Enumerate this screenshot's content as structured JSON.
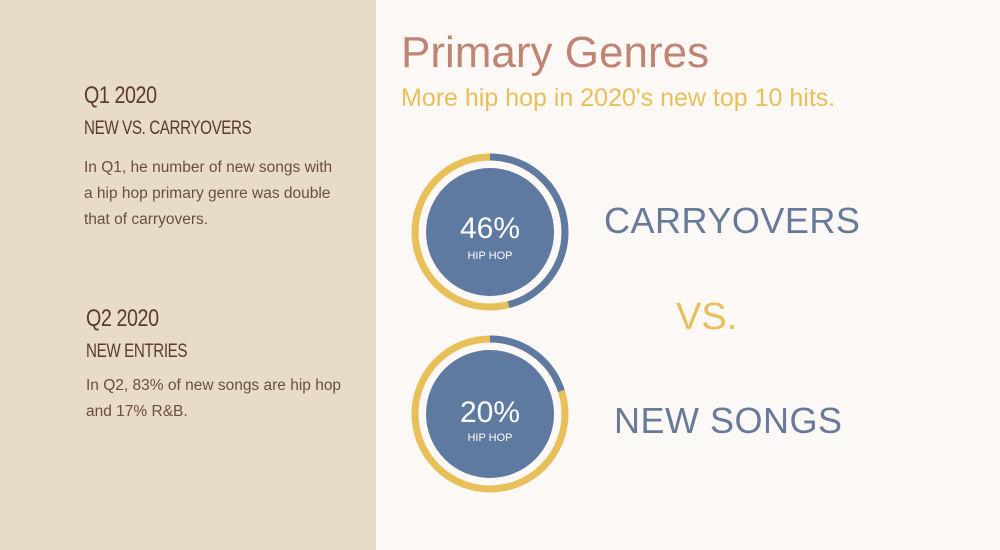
{
  "sidebar": {
    "q1": {
      "title": "Q1 2020",
      "subtitle": "NEW VS. CARRYOVERS",
      "body": "In Q1, he number of new songs with a hip hop primary genre was double that of carryovers."
    },
    "q2": {
      "title": "Q2 2020",
      "subtitle": "NEW ENTRIES",
      "body": "In Q2, 83% of new songs are hip hop and 17% R&B."
    }
  },
  "header": {
    "title": "Primary Genres",
    "subtitle": "More hip hop in 2020's new top 10 hits."
  },
  "comparison": {
    "top_label": "CARRYOVERS",
    "vs_label": "VS.",
    "bottom_label": "NEW SONGS"
  },
  "colors": {
    "sidebar": "#e8dcc4",
    "hip_hop": "#5f7aa0",
    "other": "#e8bf59",
    "title": "#c08472"
  },
  "chart_data": [
    {
      "type": "pie",
      "label": "CARRYOVERS",
      "values": [
        46,
        54
      ],
      "display_value": "46%",
      "center_label": "HIP HOP"
    },
    {
      "type": "pie",
      "label": "NEW SONGS",
      "values": [
        20,
        80
      ],
      "display_value": "20%",
      "center_label": "HIP HOP"
    }
  ]
}
